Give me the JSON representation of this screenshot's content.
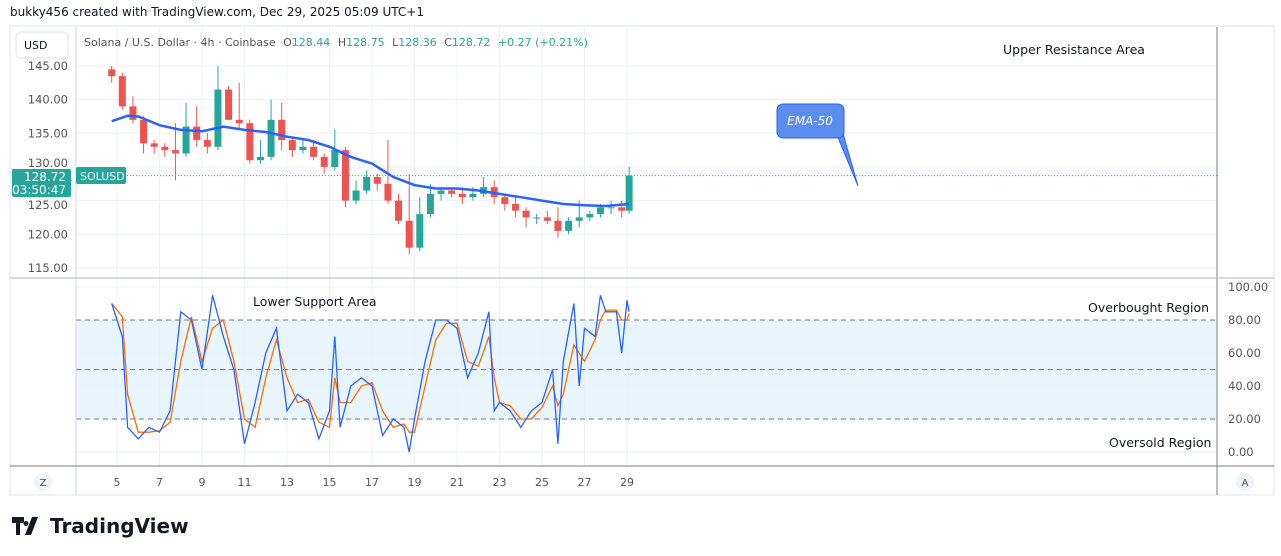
{
  "header": {
    "attribution": "bukky456 created with TradingView.com, Dec 29, 2025 05:09 UTC+1"
  },
  "legend": {
    "symbol": "Solana / U.S. Dollar · 4h · Coinbase",
    "o_label": "O",
    "o": "128.44",
    "h_label": "H",
    "h": "128.75",
    "l_label": "L",
    "l": "128.36",
    "c_label": "C",
    "c": "128.72",
    "change": "+0.27 (+0.21%)"
  },
  "currency_button": "USD",
  "price_tag": {
    "price": "128.72",
    "countdown": "03:50:47",
    "symbol": "SOLUSD"
  },
  "annotations": {
    "upper": "Upper Resistance Area",
    "ema": "EMA-50",
    "lower": "Lower Support Area",
    "overbought": "Overbought Region",
    "oversold": "Oversold Region"
  },
  "buttons": {
    "z": "Z",
    "a": "A"
  },
  "logo": "TradingView",
  "colors": {
    "up": "#26a69a",
    "down": "#ef5350",
    "ema": "#2962ff",
    "k": "#2962ff",
    "d": "#ff6d00",
    "band": "#e3f2fd"
  },
  "chart_data": [
    {
      "type": "candlestick",
      "ylim": [
        113,
        149
      ],
      "yticks": [
        "145.00",
        "140.00",
        "135.00",
        "130.00",
        "125.00",
        "120.00",
        "115.00"
      ],
      "ytick_values": [
        145,
        140,
        135,
        130,
        125,
        120,
        115
      ],
      "xticks": [
        "5",
        "7",
        "9",
        "11",
        "13",
        "15",
        "17",
        "19",
        "21",
        "23",
        "25",
        "27",
        "29"
      ],
      "xtick_values": [
        5,
        7,
        9,
        11,
        13,
        15,
        17,
        19,
        21,
        23,
        25,
        27,
        29
      ],
      "grid": true,
      "candle_days": [
        4.75,
        5.25,
        5.75,
        6.25,
        6.75,
        7.25,
        7.75,
        8.25,
        8.75,
        9.25,
        9.75,
        10.25,
        10.75,
        11.25,
        11.75,
        12.25,
        12.75,
        13.25,
        13.75,
        14.25,
        14.75,
        15.25,
        15.75,
        16.25,
        16.75,
        17.25,
        17.75,
        18.25,
        18.75,
        19.25,
        19.75,
        20.25,
        20.75,
        21.25,
        21.75,
        22.25,
        22.75,
        23.25,
        23.75,
        24.25,
        24.75,
        25.25,
        25.75,
        26.25,
        26.75,
        27.25,
        27.75,
        28.25,
        28.75,
        29.1
      ],
      "ohlc": [
        [
          144.5,
          145,
          142.5,
          143.5
        ],
        [
          143.5,
          144,
          138.5,
          139
        ],
        [
          139,
          140.5,
          136.5,
          137
        ],
        [
          137,
          137.5,
          132,
          133.5
        ],
        [
          133.5,
          134,
          132,
          133
        ],
        [
          133,
          133.5,
          131.5,
          132.5
        ],
        [
          132.5,
          136.5,
          128,
          132
        ],
        [
          132,
          139.5,
          131.5,
          136
        ],
        [
          136,
          139,
          133,
          134
        ],
        [
          134,
          135,
          132,
          133
        ],
        [
          133,
          145,
          132.5,
          141.5
        ],
        [
          141.5,
          142,
          137,
          137
        ],
        [
          137,
          142.5,
          135.5,
          136.5
        ],
        [
          136.5,
          137,
          130.5,
          131
        ],
        [
          131,
          134,
          130.5,
          131.5
        ],
        [
          131.5,
          140,
          131,
          137
        ],
        [
          137,
          139.5,
          132.5,
          134
        ],
        [
          134,
          134.5,
          131.5,
          132.5
        ],
        [
          132.5,
          134,
          132,
          133
        ],
        [
          133,
          134,
          131,
          131.5
        ],
        [
          131.5,
          132,
          129,
          130
        ],
        [
          130,
          135.5,
          129.5,
          132.5
        ],
        [
          132.5,
          133,
          124,
          125
        ],
        [
          125,
          128,
          124.5,
          126.5
        ],
        [
          126.5,
          129.5,
          126,
          128.5
        ],
        [
          128.5,
          129,
          126.5,
          127.5
        ],
        [
          127.5,
          134,
          124.5,
          125
        ],
        [
          125,
          126,
          121.5,
          122
        ],
        [
          122,
          129,
          117,
          118
        ],
        [
          118,
          125.5,
          117.5,
          123
        ],
        [
          123,
          127.5,
          122.5,
          126
        ],
        [
          126,
          127,
          125,
          126.5
        ],
        [
          126.5,
          127,
          125.5,
          126
        ],
        [
          126,
          127,
          124.5,
          125.5
        ],
        [
          125.5,
          127,
          125,
          126
        ],
        [
          126,
          128.5,
          125.5,
          127
        ],
        [
          127,
          128,
          124.5,
          125.5
        ],
        [
          125.5,
          126,
          123.5,
          124.5
        ],
        [
          124.5,
          125.5,
          122.5,
          123.5
        ],
        [
          123.5,
          124,
          121,
          122.5
        ],
        [
          122.5,
          123,
          121.5,
          122.5
        ],
        [
          122.5,
          123.5,
          121.5,
          122
        ],
        [
          122,
          124,
          119.5,
          120.5
        ],
        [
          120.5,
          122.5,
          120,
          122
        ],
        [
          122,
          125,
          121,
          122.5
        ],
        [
          122.5,
          123.5,
          122,
          123
        ],
        [
          123,
          124.5,
          122.5,
          124
        ],
        [
          124,
          125,
          123,
          124
        ],
        [
          124,
          125,
          122.5,
          123.5
        ],
        [
          123.5,
          130,
          123,
          128.72
        ]
      ],
      "ema50": {
        "name": "EMA-50",
        "days": [
          4.75,
          5.5,
          6,
          7,
          8,
          9,
          10,
          11,
          12,
          13,
          14,
          15,
          16,
          17,
          18,
          19,
          20,
          21,
          22,
          23,
          24,
          25,
          26,
          27,
          28,
          29.1
        ],
        "values": [
          136.8,
          137.6,
          137.5,
          136.2,
          135.5,
          135.3,
          136,
          135.5,
          135.2,
          134.5,
          134,
          133,
          131.5,
          130.5,
          128.5,
          127.3,
          126.8,
          126.8,
          126.5,
          126,
          125.5,
          125,
          124.5,
          124.3,
          124.2,
          124.5
        ]
      },
      "last_price": 128.72
    },
    {
      "type": "line",
      "ylim": [
        -5,
        105
      ],
      "yticks": [
        "100.00",
        "80.00",
        "60.00",
        "40.00",
        "20.00",
        "0.00"
      ],
      "ytick_values": [
        100,
        80,
        60,
        40,
        20,
        0
      ],
      "levels": [
        80,
        50,
        20
      ],
      "days": [
        4.75,
        5.25,
        5.5,
        6,
        6.5,
        7,
        7.5,
        8,
        8.5,
        9,
        9.5,
        10,
        10.5,
        11,
        11.5,
        12,
        12.5,
        13,
        13.5,
        14,
        14.5,
        15,
        15.25,
        15.5,
        16,
        16.5,
        17,
        17.5,
        18,
        18.5,
        18.75,
        19,
        19.5,
        20,
        20.5,
        21,
        21.5,
        22,
        22.5,
        22.75,
        23,
        23.5,
        24,
        24.5,
        25,
        25.5,
        25.75,
        26,
        26.5,
        26.75,
        27,
        27.5,
        27.75,
        28,
        28.5,
        28.75,
        29,
        29.1
      ],
      "k": [
        90,
        70,
        15,
        8,
        15,
        12,
        25,
        85,
        80,
        50,
        95,
        70,
        50,
        5,
        30,
        60,
        75,
        25,
        35,
        30,
        8,
        25,
        70,
        15,
        40,
        45,
        40,
        10,
        20,
        15,
        0,
        20,
        55,
        80,
        80,
        75,
        45,
        60,
        85,
        25,
        30,
        25,
        15,
        25,
        30,
        50,
        5,
        55,
        90,
        40,
        75,
        70,
        95,
        85,
        85,
        60,
        92,
        85
      ],
      "d": [
        90,
        82,
        35,
        12,
        12,
        13,
        18,
        55,
        82,
        55,
        75,
        80,
        55,
        20,
        15,
        45,
        68,
        45,
        30,
        32,
        18,
        15,
        45,
        30,
        30,
        40,
        42,
        25,
        15,
        17,
        12,
        12,
        40,
        68,
        78,
        78,
        55,
        52,
        70,
        45,
        30,
        28,
        20,
        20,
        27,
        40,
        28,
        35,
        65,
        60,
        55,
        68,
        80,
        86,
        86,
        80,
        80,
        84
      ]
    }
  ]
}
